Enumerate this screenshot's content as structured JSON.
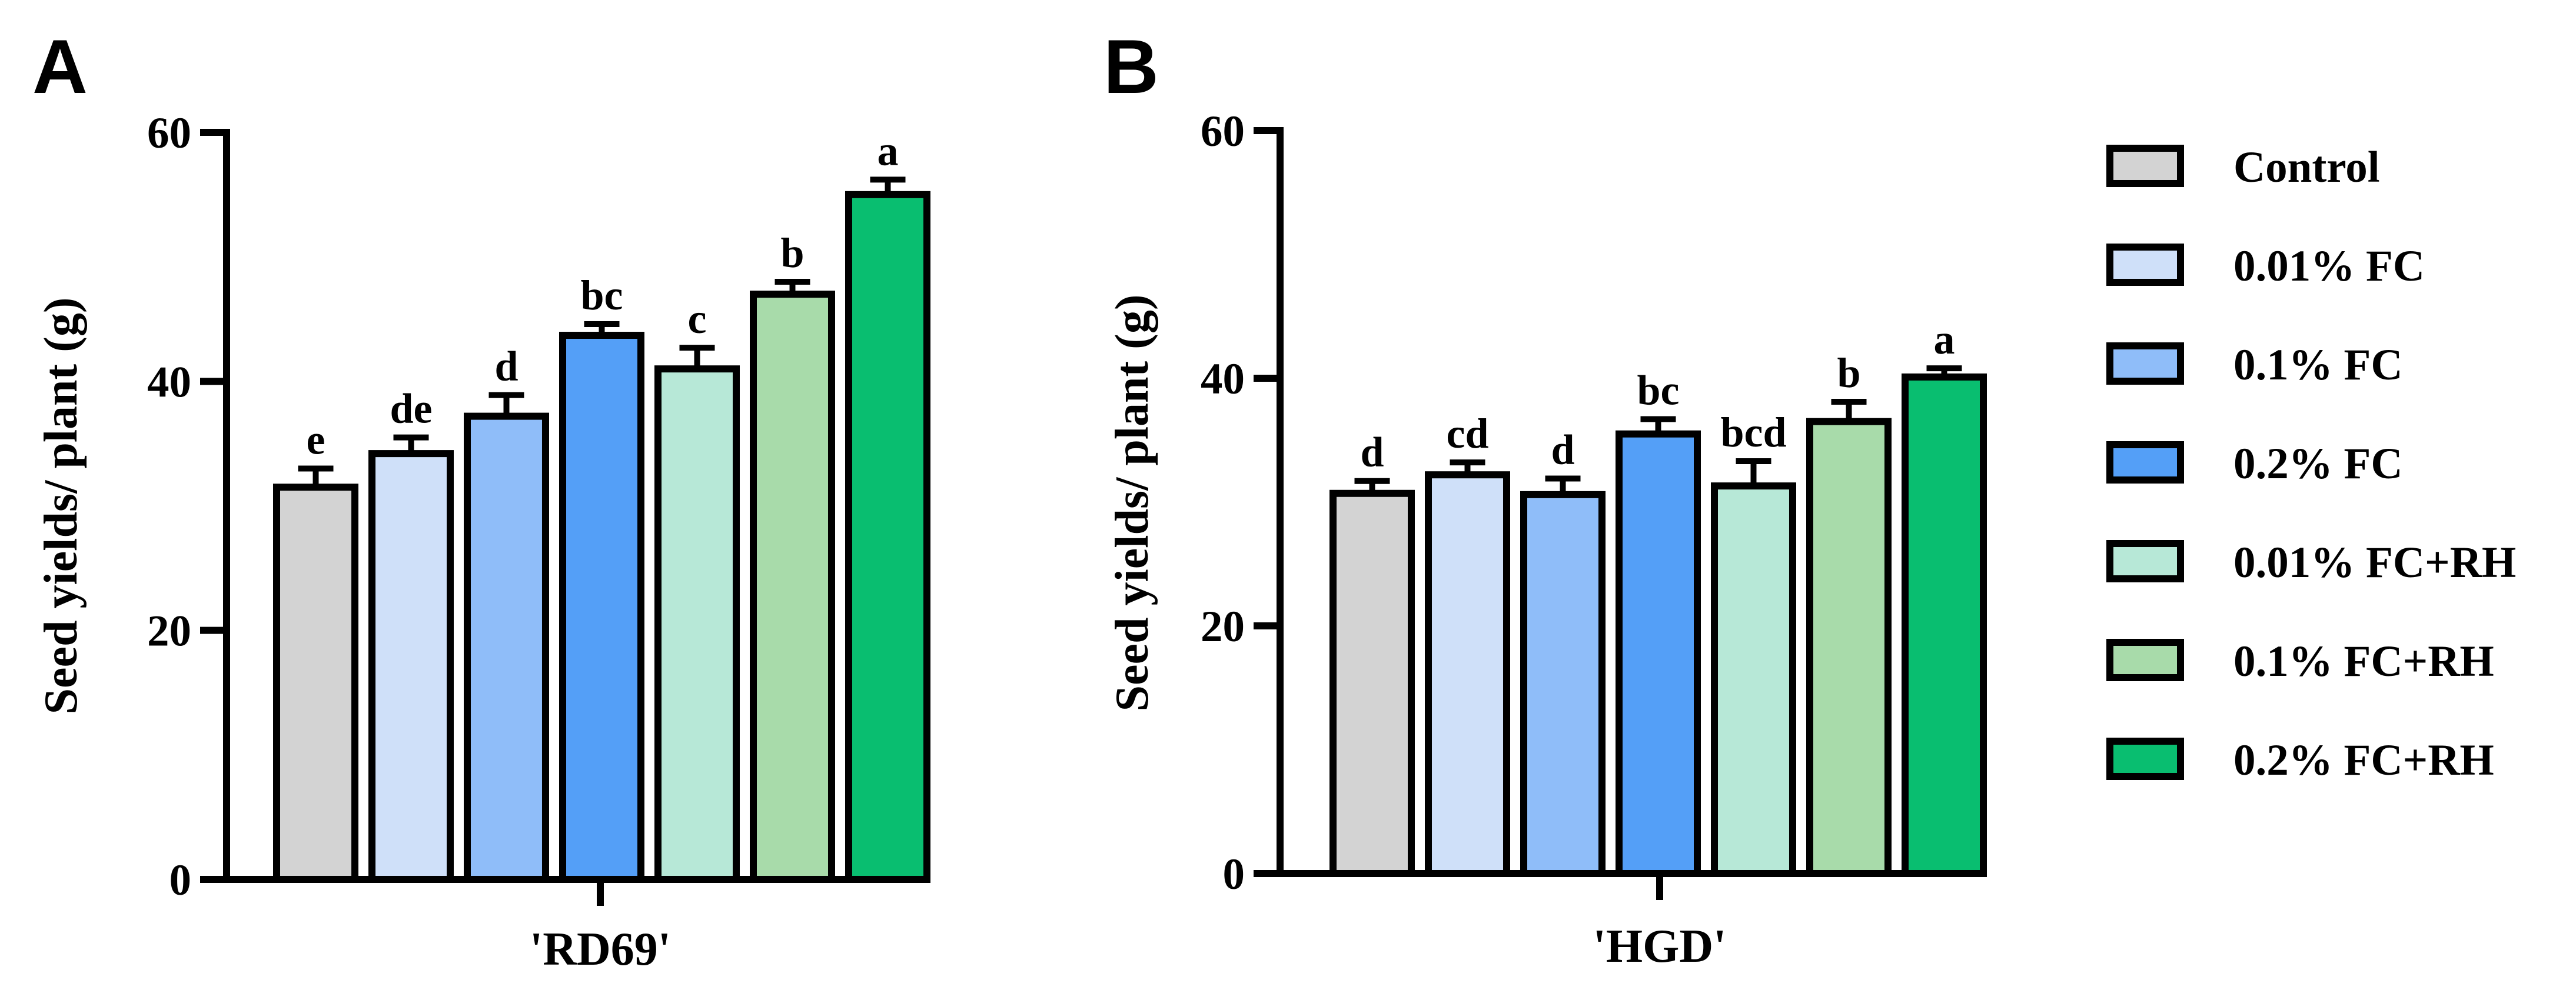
{
  "panels": [
    {
      "letter": "A",
      "chart_data": {
        "type": "bar",
        "ylabel": "Seed yields/ plant (g)",
        "xlabel": "'RD69'",
        "ylim": [
          0,
          60
        ],
        "yticks": [
          "0",
          "20",
          "40",
          "60"
        ],
        "series": [
          {
            "name": "Control",
            "value": 31.5,
            "error": 1.5,
            "letter": "e"
          },
          {
            "name": "0.01% FC",
            "value": 34.2,
            "error": 1.3,
            "letter": "de"
          },
          {
            "name": "0.1% FC",
            "value": 37.2,
            "error": 1.7,
            "letter": "d"
          },
          {
            "name": "0.2% FC",
            "value": 43.7,
            "error": 0.9,
            "letter": "bc"
          },
          {
            "name": "0.01% FC+RH",
            "value": 41.0,
            "error": 1.7,
            "letter": "c"
          },
          {
            "name": "0.1% FC+RH",
            "value": 47.0,
            "error": 1.0,
            "letter": "b"
          },
          {
            "name": "0.2% FC+RH",
            "value": 55.0,
            "error": 1.2,
            "letter": "a"
          }
        ]
      }
    },
    {
      "letter": "B",
      "chart_data": {
        "type": "bar",
        "ylabel": "Seed yields/ plant (g)",
        "xlabel": "'HGD'",
        "ylim": [
          0,
          60
        ],
        "yticks": [
          "0",
          "20",
          "40",
          "60"
        ],
        "series": [
          {
            "name": "Control",
            "value": 30.7,
            "error": 1.0,
            "letter": "d"
          },
          {
            "name": "0.01% FC",
            "value": 32.2,
            "error": 1.0,
            "letter": "cd"
          },
          {
            "name": "0.1% FC",
            "value": 30.6,
            "error": 1.3,
            "letter": "d"
          },
          {
            "name": "0.2% FC",
            "value": 35.5,
            "error": 1.2,
            "letter": "bc"
          },
          {
            "name": "0.01% FC+RH",
            "value": 31.3,
            "error": 2.0,
            "letter": "bcd"
          },
          {
            "name": "0.1% FC+RH",
            "value": 36.5,
            "error": 1.6,
            "letter": "b"
          },
          {
            "name": "0.2% FC+RH",
            "value": 40.1,
            "error": 0.7,
            "letter": "a"
          }
        ]
      }
    }
  ],
  "legend": {
    "placement": "right",
    "items": [
      {
        "label": "Control",
        "color": "#d3d3d3"
      },
      {
        "label": "0.01% FC",
        "color": "#cfe0f9"
      },
      {
        "label": "0.1% FC",
        "color": "#8fbdf9"
      },
      {
        "label": "0.2% FC",
        "color": "#549ff7"
      },
      {
        "label": "0.01% FC+RH",
        "color": "#b7e8d7"
      },
      {
        "label": "0.1% FC+RH",
        "color": "#a8dbaa"
      },
      {
        "label": "0.2% FC+RH",
        "color": "#09be70"
      }
    ]
  }
}
